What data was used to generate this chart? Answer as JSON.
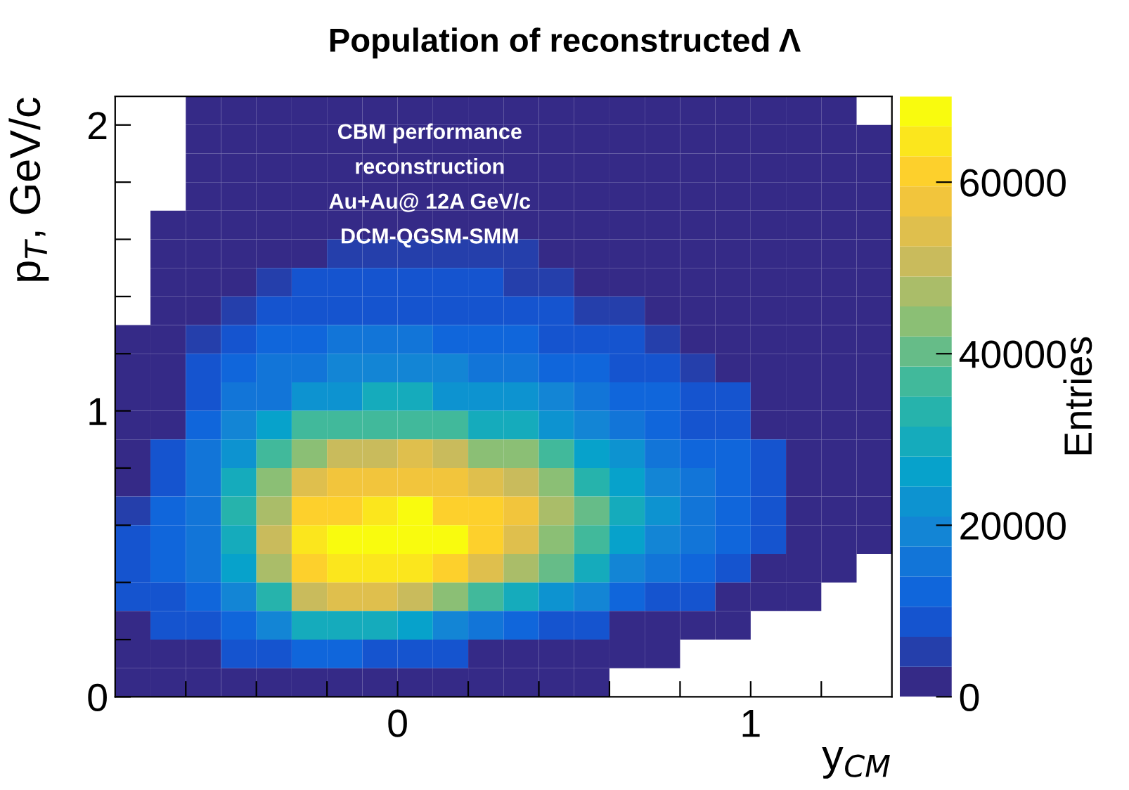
{
  "chart_data": {
    "type": "heatmap",
    "title": "Population of reconstructed Λ",
    "xlabel": "y$_{CM}$",
    "ylabel": "p$_{T}$, GeV/c",
    "clabel": "Entries",
    "annotations": [
      "CBM performance",
      "reconstruction",
      "Au+Au@ 12A GeV/c",
      "DCM-QGSM-SMM"
    ],
    "x": [
      -0.75,
      -0.65,
      -0.55,
      -0.45,
      -0.35,
      -0.25,
      -0.15,
      -0.05,
      0.05,
      0.15,
      0.25,
      0.35,
      0.45,
      0.55,
      0.65,
      0.75,
      0.85,
      0.95,
      1.05,
      1.15,
      1.25,
      1.35
    ],
    "y": [
      2.05,
      1.95,
      1.85,
      1.75,
      1.65,
      1.55,
      1.45,
      1.35,
      1.25,
      1.15,
      1.05,
      0.95,
      0.85,
      0.75,
      0.65,
      0.55,
      0.45,
      0.35,
      0.25,
      0.15,
      0.05
    ],
    "xlim": [
      -0.8,
      1.4
    ],
    "ylim": [
      0,
      2.1
    ],
    "xticks": [
      {
        "value": -0.6,
        "label": null
      },
      {
        "value": -0.4,
        "label": null
      },
      {
        "value": -0.2,
        "label": null
      },
      0,
      {
        "value": 0.2,
        "label": null
      },
      {
        "value": 0.4,
        "label": null
      },
      {
        "value": 0.6,
        "label": null
      },
      {
        "value": 0.8,
        "label": null
      },
      1,
      {
        "value": 1.2,
        "label": null
      }
    ],
    "yticks": [
      0,
      {
        "value": 0.2,
        "label": null
      },
      {
        "value": 0.4,
        "label": null
      },
      {
        "value": 0.6,
        "label": null
      },
      {
        "value": 0.8,
        "label": null
      },
      1,
      {
        "value": 1.2,
        "label": null
      },
      {
        "value": 1.4,
        "label": null
      },
      {
        "value": 1.6,
        "label": null
      },
      {
        "value": 1.8,
        "label": null
      },
      2
    ],
    "clim": [
      0,
      70000
    ],
    "cticks": [
      0,
      20000,
      40000,
      60000
    ],
    "colors": [
      "#352a87",
      "#0f5cdd",
      "#1481d6",
      "#06a4ca",
      "#2eb7a4",
      "#87bf77",
      "#d1bb59",
      "#fec832",
      "#f9fb0e"
    ],
    "cells": [
      [
        null,
        null,
        1000,
        1000,
        1000,
        1000,
        1000,
        1000,
        1000,
        1000,
        1000,
        1000,
        1000,
        1000,
        1000,
        1000,
        1000,
        1000,
        1000,
        1000,
        1000,
        null
      ],
      [
        null,
        null,
        1000,
        1000,
        1000,
        1000,
        1000,
        1000,
        1000,
        1000,
        1000,
        1000,
        1000,
        1000,
        1000,
        1000,
        1000,
        1000,
        1000,
        1000,
        1000,
        1000
      ],
      [
        null,
        null,
        1000,
        1000,
        1000,
        1000,
        1000,
        1000,
        1000,
        1000,
        1000,
        1000,
        1000,
        1000,
        1000,
        1000,
        1000,
        1000,
        1000,
        1000,
        1000,
        1000
      ],
      [
        null,
        null,
        1000,
        1000,
        1000,
        1000,
        1000,
        1000,
        1000,
        1000,
        1000,
        1000,
        1000,
        1000,
        1000,
        1000,
        1000,
        1000,
        1000,
        1000,
        1000,
        1000
      ],
      [
        null,
        2000,
        2000,
        2000,
        2000,
        2000,
        2000,
        2000,
        2000,
        2000,
        2000,
        2000,
        2000,
        2000,
        2000,
        2000,
        2000,
        2000,
        2000,
        2000,
        2000,
        2000
      ],
      [
        null,
        2000,
        2000,
        2000,
        2000,
        2000,
        5000,
        5000,
        5000,
        5000,
        5000,
        5000,
        2000,
        2000,
        2000,
        2000,
        2000,
        2000,
        2000,
        2000,
        2000,
        2000
      ],
      [
        null,
        2000,
        2000,
        2000,
        6000,
        7000,
        7000,
        7000,
        7000,
        7000,
        7000,
        6000,
        6000,
        2000,
        2000,
        2000,
        2000,
        2000,
        2000,
        2000,
        2000,
        2000
      ],
      [
        null,
        2000,
        2000,
        6000,
        8000,
        10000,
        10000,
        10000,
        10000,
        10000,
        9000,
        8000,
        8000,
        6000,
        5000,
        2000,
        2000,
        2000,
        2000,
        2000,
        2000,
        2000
      ],
      [
        3000,
        3000,
        5000,
        9000,
        11000,
        12000,
        14000,
        14000,
        14000,
        13000,
        12000,
        12000,
        10000,
        9000,
        7000,
        6000,
        3000,
        3000,
        3000,
        3000,
        3000,
        3000
      ],
      [
        3000,
        3000,
        8000,
        12000,
        14000,
        17000,
        18000,
        20000,
        18000,
        18000,
        16000,
        15000,
        13000,
        12000,
        10000,
        7000,
        5000,
        3000,
        3000,
        3000,
        3000,
        3000
      ],
      [
        3000,
        3000,
        7000,
        14000,
        17000,
        22000,
        24000,
        28000,
        28000,
        24000,
        24000,
        22000,
        19000,
        16000,
        13000,
        11000,
        9000,
        8000,
        3000,
        3000,
        3000,
        3000
      ],
      [
        3000,
        3000,
        12000,
        18000,
        25000,
        37000,
        37000,
        37000,
        37000,
        37000,
        30000,
        28000,
        22000,
        20000,
        16000,
        13000,
        10000,
        7000,
        3000,
        3000,
        3000,
        3000
      ],
      [
        3000,
        8000,
        14000,
        24000,
        35000,
        42000,
        50000,
        50000,
        55000,
        50000,
        45000,
        42000,
        35000,
        27000,
        22000,
        16000,
        13000,
        11000,
        9000,
        3000,
        3000,
        3000
      ],
      [
        3000,
        9000,
        14000,
        30000,
        42000,
        55000,
        57000,
        57000,
        57000,
        57000,
        53000,
        50000,
        42000,
        32000,
        25000,
        18000,
        14000,
        12000,
        9000,
        3000,
        3000,
        3000
      ],
      [
        4000,
        12000,
        16000,
        32000,
        48000,
        60000,
        62000,
        65000,
        69000,
        62000,
        60000,
        56000,
        47000,
        40000,
        28000,
        22000,
        14000,
        12000,
        10000,
        3000,
        3000,
        3000
      ],
      [
        9000,
        12000,
        17000,
        28000,
        52000,
        64000,
        69000,
        69000,
        69000,
        69000,
        62000,
        54000,
        45000,
        35000,
        25000,
        20000,
        14000,
        12000,
        10000,
        3000,
        3000,
        3000
      ],
      [
        9000,
        12000,
        15000,
        26000,
        47000,
        60000,
        66000,
        66000,
        66000,
        60000,
        54000,
        48000,
        40000,
        28000,
        20000,
        15000,
        12000,
        8000,
        3000,
        3000,
        3000,
        null
      ],
      [
        8000,
        10000,
        13000,
        20000,
        33000,
        50000,
        53000,
        53000,
        50000,
        45000,
        38000,
        28000,
        22000,
        18000,
        12000,
        10000,
        7000,
        3000,
        3000,
        3000,
        null,
        null
      ],
      [
        2000,
        8000,
        8000,
        12000,
        20000,
        28000,
        28000,
        28000,
        25000,
        20000,
        14000,
        12000,
        10000,
        7000,
        3000,
        3000,
        3000,
        3000,
        null,
        null,
        null,
        null
      ],
      [
        2000,
        2000,
        2000,
        8000,
        8000,
        12000,
        12000,
        9000,
        9000,
        7000,
        3000,
        2000,
        2000,
        2000,
        2000,
        2000,
        null,
        null,
        null,
        null,
        null,
        null
      ],
      [
        1500,
        1500,
        1500,
        1500,
        1500,
        1500,
        1500,
        1500,
        1500,
        1500,
        1500,
        1500,
        1500,
        1500,
        null,
        null,
        null,
        null,
        null,
        null,
        null,
        null
      ]
    ]
  }
}
